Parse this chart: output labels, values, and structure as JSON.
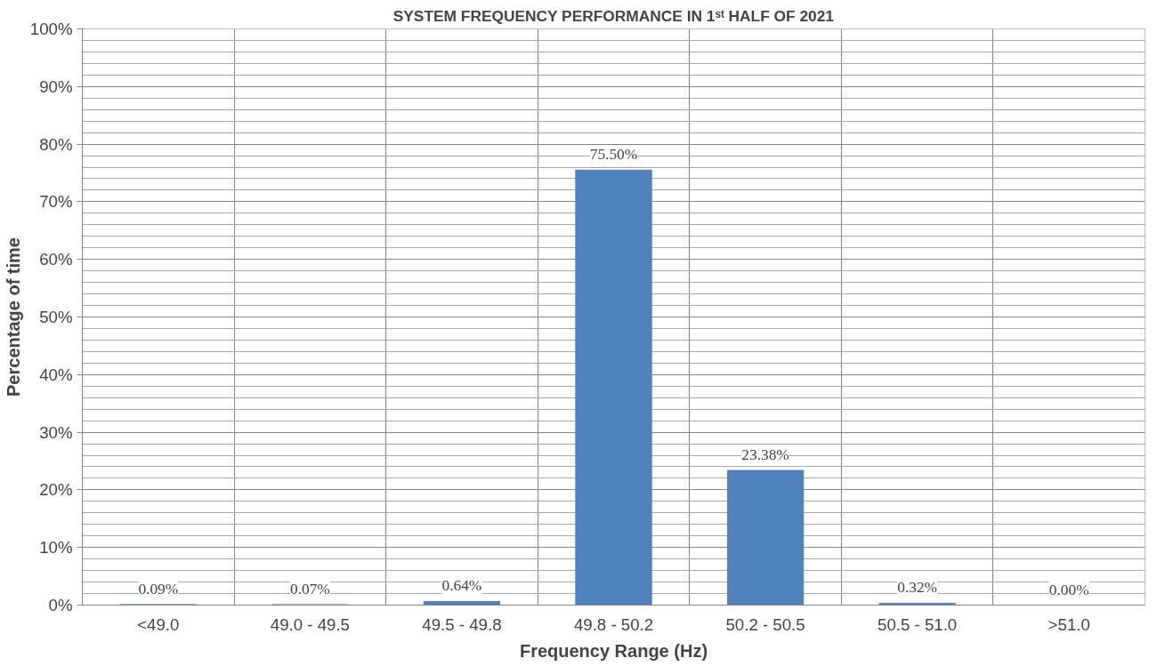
{
  "chart_data": {
    "type": "bar",
    "title": "SYSTEM FREQUENCY PERFORMANCE IN 1ˢᵗ HALF OF 2021",
    "xlabel": "Frequency Range (Hz)",
    "ylabel": "Percentage of time",
    "categories": [
      "<49.0",
      "49.0 - 49.5",
      "49.5 - 49.8",
      "49.8 - 50.2",
      "50.2 - 50.5",
      "50.5 - 51.0",
      ">51.0"
    ],
    "values": [
      0.09,
      0.07,
      0.64,
      75.5,
      23.38,
      0.32,
      0.0
    ],
    "value_labels": [
      "0.09%",
      "0.07%",
      "0.64%",
      "75.50%",
      "23.38%",
      "0.32%",
      "0.00%"
    ],
    "color": "#4f81bd",
    "ylim": [
      0,
      100
    ],
    "yticks": [
      {
        "value": 0,
        "label": "0%"
      },
      {
        "value": 2,
        "label": null
      },
      {
        "value": 4,
        "label": null
      },
      {
        "value": 6,
        "label": null
      },
      {
        "value": 8,
        "label": null
      },
      {
        "value": 10,
        "label": "10%"
      },
      {
        "value": 12,
        "label": null
      },
      {
        "value": 14,
        "label": null
      },
      {
        "value": 16,
        "label": null
      },
      {
        "value": 18,
        "label": null
      },
      {
        "value": 20,
        "label": "20%"
      },
      {
        "value": 22,
        "label": null
      },
      {
        "value": 24,
        "label": null
      },
      {
        "value": 26,
        "label": null
      },
      {
        "value": 28,
        "label": null
      },
      {
        "value": 30,
        "label": "30%"
      },
      {
        "value": 32,
        "label": null
      },
      {
        "value": 34,
        "label": null
      },
      {
        "value": 36,
        "label": null
      },
      {
        "value": 38,
        "label": null
      },
      {
        "value": 40,
        "label": "40%"
      },
      {
        "value": 42,
        "label": null
      },
      {
        "value": 44,
        "label": null
      },
      {
        "value": 46,
        "label": null
      },
      {
        "value": 48,
        "label": null
      },
      {
        "value": 50,
        "label": "50%"
      },
      {
        "value": 52,
        "label": null
      },
      {
        "value": 54,
        "label": null
      },
      {
        "value": 56,
        "label": null
      },
      {
        "value": 58,
        "label": null
      },
      {
        "value": 60,
        "label": "60%"
      },
      {
        "value": 62,
        "label": null
      },
      {
        "value": 64,
        "label": null
      },
      {
        "value": 66,
        "label": null
      },
      {
        "value": 68,
        "label": null
      },
      {
        "value": 70,
        "label": "70%"
      },
      {
        "value": 72,
        "label": null
      },
      {
        "value": 74,
        "label": null
      },
      {
        "value": 76,
        "label": null
      },
      {
        "value": 78,
        "label": null
      },
      {
        "value": 80,
        "label": "80%"
      },
      {
        "value": 82,
        "label": null
      },
      {
        "value": 84,
        "label": null
      },
      {
        "value": 86,
        "label": null
      },
      {
        "value": 88,
        "label": null
      },
      {
        "value": 90,
        "label": "90%"
      },
      {
        "value": 92,
        "label": null
      },
      {
        "value": 94,
        "label": null
      },
      {
        "value": 96,
        "label": null
      },
      {
        "value": 98,
        "label": null
      },
      {
        "value": 100,
        "label": "100%"
      }
    ],
    "grid": true
  }
}
